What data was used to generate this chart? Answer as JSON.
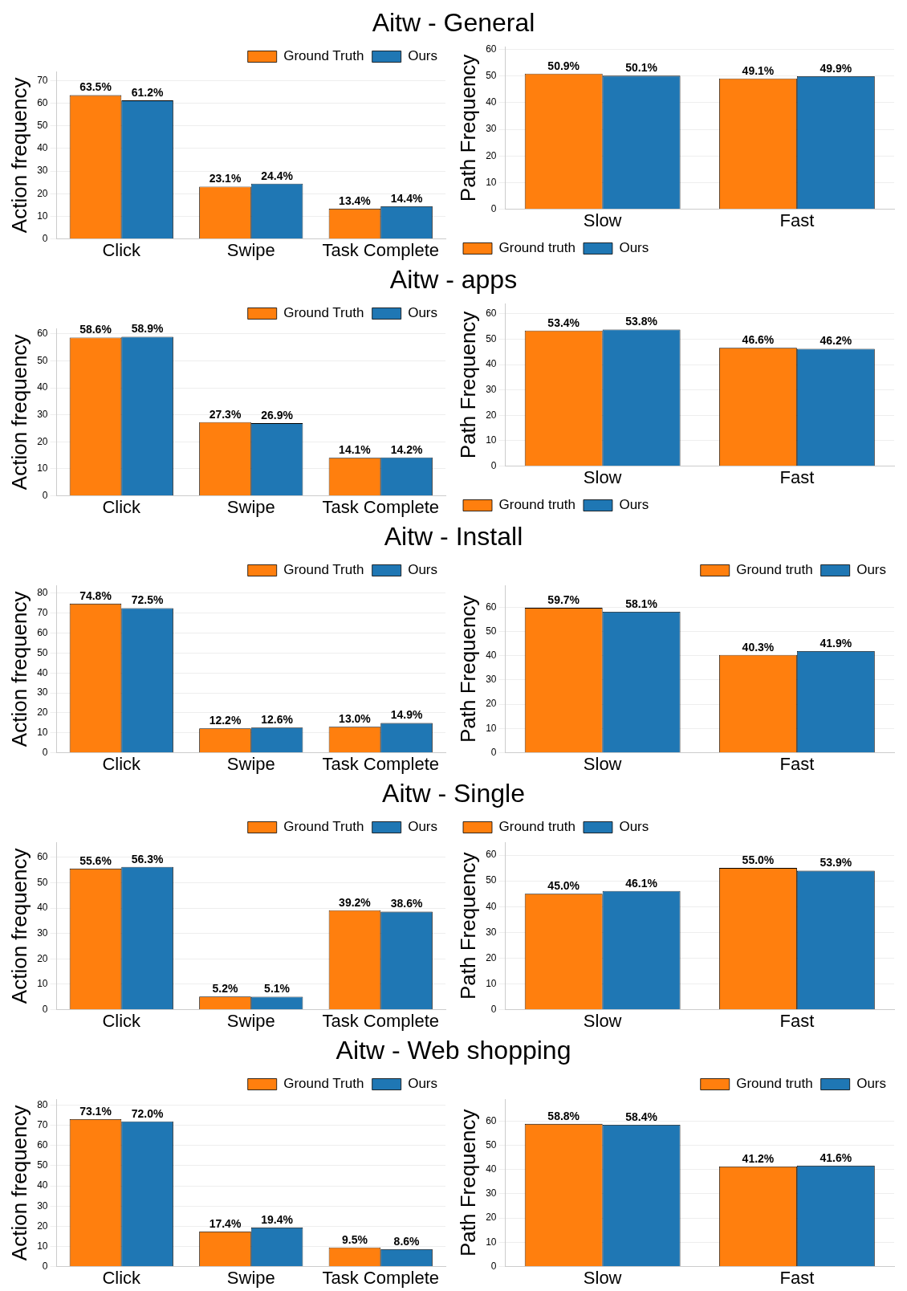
{
  "chart_data": [
    {
      "type": "bar",
      "title": "Aitw - General",
      "ylabel": "Action frequency",
      "categories": [
        "Click",
        "Swipe",
        "Task Complete"
      ],
      "legend": "top right",
      "grid": "y",
      "ylim": [
        0,
        74
      ],
      "yticks": [
        0,
        10,
        20,
        30,
        40,
        50,
        60,
        70
      ],
      "series": [
        {
          "name": "Ground Truth",
          "color": "#ff7f0e",
          "values": [
            63.5,
            23.1,
            13.4
          ],
          "value_labels": [
            "63.5%",
            "23.1%",
            "13.4%"
          ]
        },
        {
          "name": "Ours",
          "color": "#1f77b4",
          "values": [
            61.2,
            24.4,
            14.4
          ],
          "value_labels": [
            "61.2%",
            "24.4%",
            "14.4%"
          ]
        }
      ]
    },
    {
      "type": "bar",
      "ylabel": "Path Frequency",
      "categories": [
        "Slow",
        "Fast"
      ],
      "legend": "bottom left",
      "grid": "y",
      "ylim": [
        0,
        61
      ],
      "yticks": [
        0,
        10,
        20,
        30,
        40,
        50,
        60
      ],
      "series": [
        {
          "name": "Ground truth",
          "color": "#ff7f0e",
          "values": [
            50.9,
            49.1
          ],
          "value_labels": [
            "50.9%",
            "49.1%"
          ]
        },
        {
          "name": "Ours",
          "color": "#1f77b4",
          "values": [
            50.1,
            49.9
          ],
          "value_labels": [
            "50.1%",
            "49.9%"
          ]
        }
      ]
    },
    {
      "type": "bar",
      "title": "Aitw - apps",
      "ylabel": "Action frequency",
      "categories": [
        "Click",
        "Swipe",
        "Task Complete"
      ],
      "legend": "top right",
      "grid": "y",
      "ylim": [
        0,
        62
      ],
      "yticks": [
        0,
        10,
        20,
        30,
        40,
        50,
        60
      ],
      "series": [
        {
          "name": "Ground Truth",
          "color": "#ff7f0e",
          "values": [
            58.6,
            27.3,
            14.1
          ],
          "value_labels": [
            "58.6%",
            "27.3%",
            "14.1%"
          ]
        },
        {
          "name": "Ours",
          "color": "#1f77b4",
          "values": [
            58.9,
            26.9,
            14.2
          ],
          "value_labels": [
            "58.9%",
            "26.9%",
            "14.2%"
          ]
        }
      ]
    },
    {
      "type": "bar",
      "ylabel": "Path Frequency",
      "categories": [
        "Slow",
        "Fast"
      ],
      "legend": "bottom left",
      "grid": "y",
      "ylim": [
        0,
        64
      ],
      "yticks": [
        0,
        10,
        20,
        30,
        40,
        50,
        60
      ],
      "series": [
        {
          "name": "Ground truth",
          "color": "#ff7f0e",
          "values": [
            53.4,
            46.6
          ],
          "value_labels": [
            "53.4%",
            "46.6%"
          ]
        },
        {
          "name": "Ours",
          "color": "#1f77b4",
          "values": [
            53.8,
            46.2
          ],
          "value_labels": [
            "53.8%",
            "46.2%"
          ]
        }
      ]
    },
    {
      "type": "bar",
      "title": "Aitw - Install",
      "ylabel": "Action frequency",
      "categories": [
        "Click",
        "Swipe",
        "Task Complete"
      ],
      "legend": "top right",
      "grid": "y",
      "ylim": [
        0,
        84
      ],
      "yticks": [
        0,
        10,
        20,
        30,
        40,
        50,
        60,
        70,
        80
      ],
      "series": [
        {
          "name": "Ground Truth",
          "color": "#ff7f0e",
          "values": [
            74.8,
            12.2,
            13.0
          ],
          "value_labels": [
            "74.8%",
            "12.2%",
            "13.0%"
          ]
        },
        {
          "name": "Ours",
          "color": "#1f77b4",
          "values": [
            72.5,
            12.6,
            14.9
          ],
          "value_labels": [
            "72.5%",
            "12.6%",
            "14.9%"
          ]
        }
      ]
    },
    {
      "type": "bar",
      "ylabel": "Path Frequency",
      "categories": [
        "Slow",
        "Fast"
      ],
      "legend": "top right",
      "grid": "y",
      "ylim": [
        0,
        69
      ],
      "yticks": [
        0,
        10,
        20,
        30,
        40,
        50,
        60
      ],
      "series": [
        {
          "name": "Ground truth",
          "color": "#ff7f0e",
          "values": [
            59.7,
            40.3
          ],
          "value_labels": [
            "59.7%",
            "40.3%"
          ]
        },
        {
          "name": "Ours",
          "color": "#1f77b4",
          "values": [
            58.1,
            41.9
          ],
          "value_labels": [
            "58.1%",
            "41.9%"
          ]
        }
      ]
    },
    {
      "type": "bar",
      "title": "Aitw - Single",
      "ylabel": "Action frequency",
      "categories": [
        "Click",
        "Swipe",
        "Task Complete"
      ],
      "legend": "top right",
      "grid": "y",
      "ylim": [
        0,
        66
      ],
      "yticks": [
        0,
        10,
        20,
        30,
        40,
        50,
        60
      ],
      "series": [
        {
          "name": "Ground Truth",
          "color": "#ff7f0e",
          "values": [
            55.6,
            5.2,
            39.2
          ],
          "value_labels": [
            "55.6%",
            "5.2%",
            "39.2%"
          ]
        },
        {
          "name": "Ours",
          "color": "#1f77b4",
          "values": [
            56.3,
            5.1,
            38.6
          ],
          "value_labels": [
            "56.3%",
            "5.1%",
            "38.6%"
          ]
        }
      ]
    },
    {
      "type": "bar",
      "ylabel": "Path Frequency",
      "categories": [
        "Slow",
        "Fast"
      ],
      "legend": "top left",
      "grid": "y",
      "ylim": [
        0,
        65
      ],
      "yticks": [
        0,
        10,
        20,
        30,
        40,
        50,
        60
      ],
      "series": [
        {
          "name": "Ground truth",
          "color": "#ff7f0e",
          "values": [
            45.0,
            55.0
          ],
          "value_labels": [
            "45.0%",
            "55.0%"
          ]
        },
        {
          "name": "Ours",
          "color": "#1f77b4",
          "values": [
            46.1,
            53.9
          ],
          "value_labels": [
            "46.1%",
            "53.9%"
          ]
        }
      ]
    },
    {
      "type": "bar",
      "title": "Aitw - Web shopping",
      "ylabel": "Action frequency",
      "categories": [
        "Click",
        "Swipe",
        "Task Complete"
      ],
      "legend": "top right",
      "grid": "y",
      "ylim": [
        0,
        83
      ],
      "yticks": [
        0,
        10,
        20,
        30,
        40,
        50,
        60,
        70,
        80
      ],
      "series": [
        {
          "name": "Ground Truth",
          "color": "#ff7f0e",
          "values": [
            73.1,
            17.4,
            9.5
          ],
          "value_labels": [
            "73.1%",
            "17.4%",
            "9.5%"
          ]
        },
        {
          "name": "Ours",
          "color": "#1f77b4",
          "values": [
            72.0,
            19.4,
            8.6
          ],
          "value_labels": [
            "72.0%",
            "19.4%",
            "8.6%"
          ]
        }
      ]
    },
    {
      "type": "bar",
      "ylabel": "Path Frequency",
      "categories": [
        "Slow",
        "Fast"
      ],
      "legend": "top right",
      "grid": "y",
      "ylim": [
        0,
        69
      ],
      "yticks": [
        0,
        10,
        20,
        30,
        40,
        50,
        60
      ],
      "series": [
        {
          "name": "Ground truth",
          "color": "#ff7f0e",
          "values": [
            58.8,
            41.2
          ],
          "value_labels": [
            "58.8%",
            "41.2%"
          ]
        },
        {
          "name": "Ours",
          "color": "#1f77b4",
          "values": [
            58.4,
            41.6
          ],
          "value_labels": [
            "58.4%",
            "41.6%"
          ]
        }
      ]
    }
  ]
}
